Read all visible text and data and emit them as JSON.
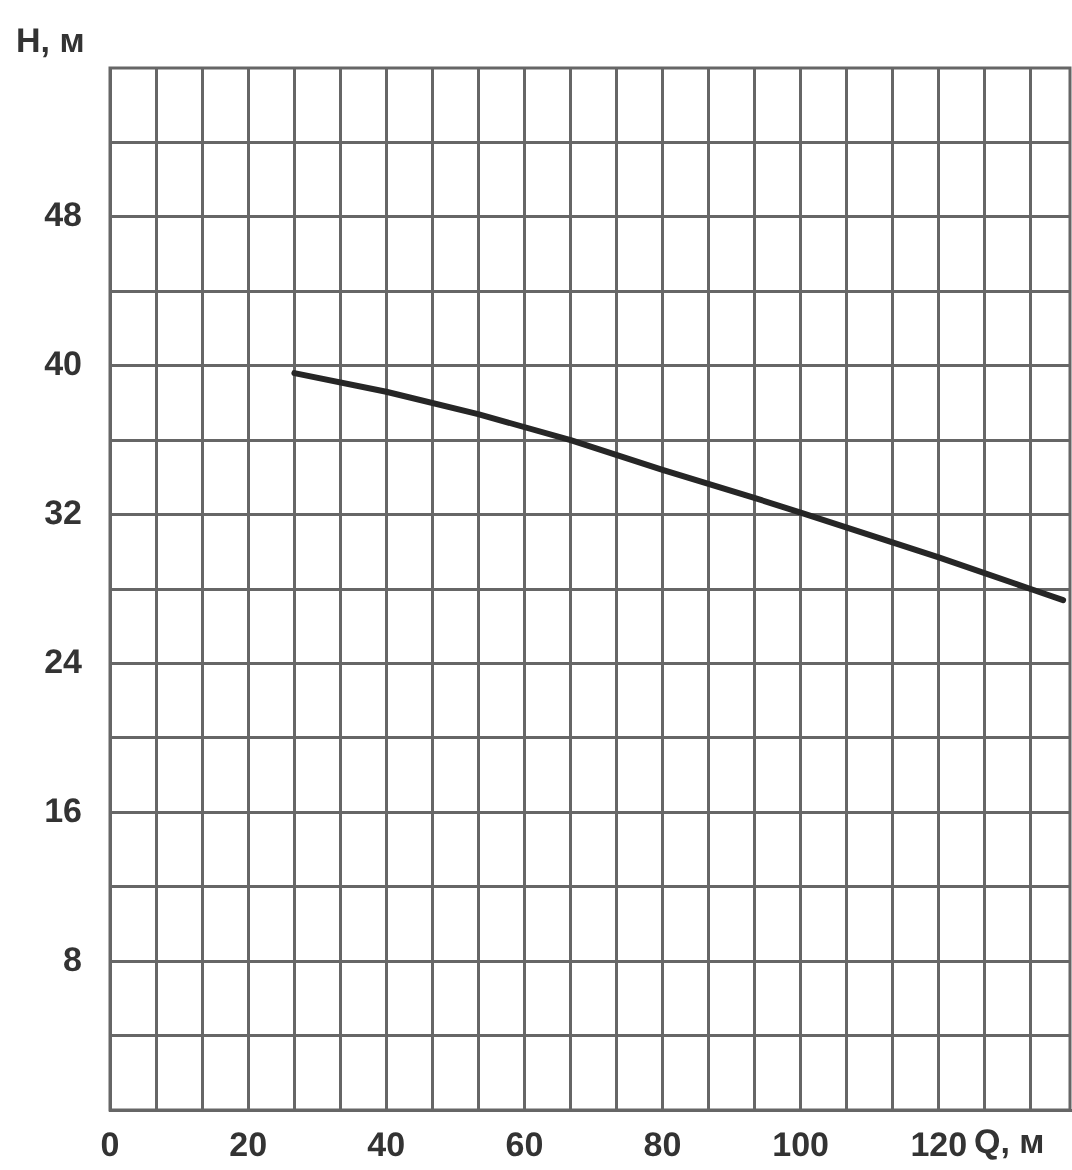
{
  "chart_data": {
    "type": "line",
    "xlabel": "Q, м",
    "ylabel": "H, м",
    "x": [
      26.7,
      40,
      53.3,
      66.7,
      80,
      93.3,
      100,
      106.7,
      120,
      133.3,
      138
    ],
    "series": [
      {
        "color": "#262626",
        "values": [
          39.6,
          38.6,
          37.4,
          36,
          34.4,
          32.9,
          32.1,
          31.3,
          29.7,
          28,
          27.4
        ]
      }
    ],
    "xlim": [
      0,
      139
    ],
    "xticks": [
      0,
      {
        "value": 6.67,
        "label": null
      },
      {
        "value": 13.33,
        "label": null
      },
      20,
      {
        "value": 26.67,
        "label": null
      },
      {
        "value": 33.33,
        "label": null
      },
      40,
      {
        "value": 46.67,
        "label": null
      },
      {
        "value": 53.33,
        "label": null
      },
      60,
      {
        "value": 66.67,
        "label": null
      },
      {
        "value": 73.33,
        "label": null
      },
      80,
      {
        "value": 86.67,
        "label": null
      },
      {
        "value": 93.33,
        "label": null
      },
      100,
      {
        "value": 106.67,
        "label": null
      },
      {
        "value": 113.33,
        "label": null
      },
      120,
      {
        "value": 126.67,
        "label": null
      },
      {
        "value": 133.33,
        "label": null
      }
    ],
    "ylim": [
      0,
      56
    ],
    "yticks": [
      {
        "value": 4,
        "label": null
      },
      8,
      {
        "value": 12,
        "label": null
      },
      16,
      {
        "value": 20,
        "label": null
      },
      24,
      {
        "value": 28,
        "label": null
      },
      32,
      {
        "value": 36,
        "label": null
      },
      40,
      {
        "value": 44,
        "label": null
      },
      48,
      {
        "value": 52,
        "label": null
      }
    ],
    "grid": true,
    "legend": false,
    "marker": "none",
    "line_style": "solid"
  }
}
